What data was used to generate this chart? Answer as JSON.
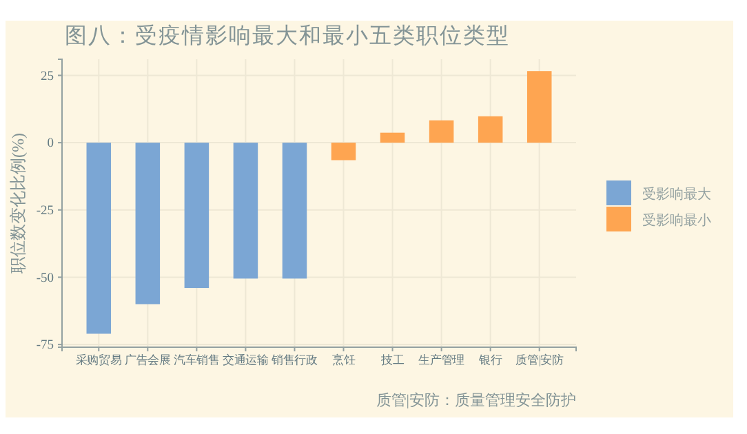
{
  "chart_data": {
    "type": "bar",
    "title": "图八：受疫情影响最大和最小五类职位类型",
    "ylabel": "职位数变化比例(%)",
    "categories": [
      "采购贸易",
      "广告会展",
      "汽车销售",
      "交通运输",
      "销售行政",
      "烹饪",
      "技工",
      "生产管理",
      "银行",
      "质管|安防"
    ],
    "series": [
      {
        "name": "受影响最大",
        "color": "#7ba6d4",
        "values": [
          -71,
          -60,
          -54,
          -50.5,
          -50.5,
          null,
          null,
          null,
          null,
          null
        ]
      },
      {
        "name": "受影响最小",
        "color": "#fea551",
        "values": [
          null,
          null,
          null,
          null,
          null,
          -6.5,
          3.7,
          8.3,
          9.8,
          26.6
        ]
      }
    ],
    "ylim": [
      -76,
      31
    ],
    "yticks": [
      -75,
      -50,
      -25,
      0,
      25
    ],
    "grid": true,
    "legend": "right",
    "annotations": [
      "质管|安防：质量管理安全防护"
    ]
  }
}
